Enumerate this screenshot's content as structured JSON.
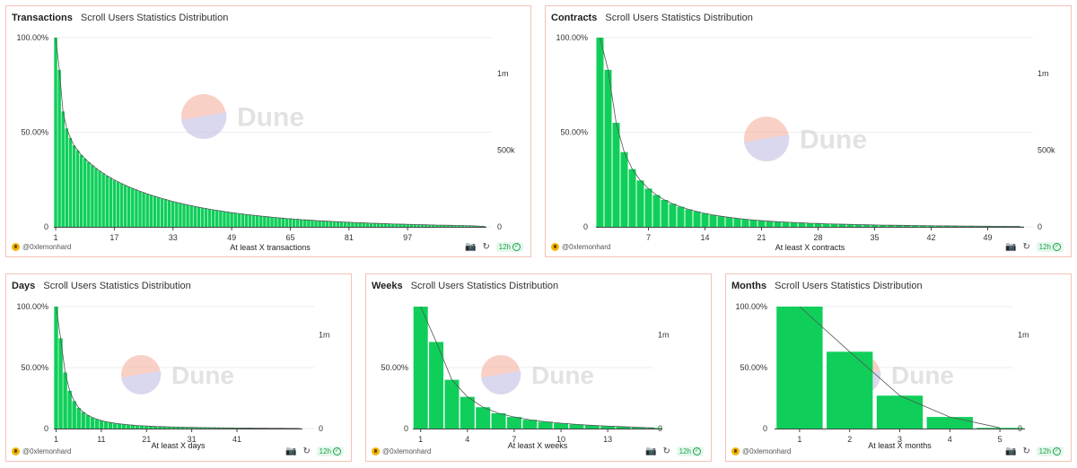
{
  "dashboard": {
    "subtitle": "Scroll Users Statistics Distribution",
    "author": "@0xlemonhard",
    "refresh_label": "12h",
    "watermark": "Dune"
  },
  "colors": {
    "bar": "#0fcf5a",
    "bar_stroke": "#ffffff",
    "line": "#555555",
    "grid": "#eeeeee",
    "panel_border": "#f3c2b6",
    "wm_top": "#f6b7a8",
    "wm_bottom": "#c7c4e8",
    "wm_text": "#d4d4d4"
  },
  "chart_data": [
    {
      "id": "transactions",
      "type": "bar",
      "title": "Transactions",
      "xlabel": "At least X transactions",
      "x_tick_labels": [
        "1",
        "17",
        "33",
        "49",
        "65",
        "81",
        "97"
      ],
      "y_left_ticks": [
        "0",
        "50.00%",
        "100.00%"
      ],
      "y_right_ticks": [
        "0",
        "500k",
        "1m"
      ],
      "note": "percent of users with at least X transactions, X = 1..118",
      "values": [
        100,
        83,
        61,
        52,
        47,
        43,
        40.5,
        38,
        36,
        34.2,
        32.6,
        31,
        29.6,
        28.3,
        27,
        25.9,
        24.8,
        23.8,
        22.9,
        22,
        21.1,
        20.3,
        19.6,
        18.8,
        18.1,
        17.4,
        16.8,
        16.2,
        15.6,
        15,
        14.5,
        13.9,
        13.4,
        12.9,
        12.5,
        12,
        11.6,
        11.2,
        10.8,
        10.4,
        10,
        9.7,
        9.3,
        9,
        8.7,
        8.4,
        8.1,
        7.8,
        7.5,
        7.3,
        7,
        6.8,
        6.5,
        6.3,
        6.1,
        5.9,
        5.7,
        5.5,
        5.3,
        5.1,
        4.9,
        4.7,
        4.6,
        4.4,
        4.3,
        4.1,
        4,
        3.8,
        3.7,
        3.6,
        3.5,
        3.3,
        3.2,
        3.1,
        3,
        2.9,
        2.8,
        2.7,
        2.6,
        2.5,
        2.4,
        2.3,
        2.2,
        2.2,
        2.1,
        2,
        1.9,
        1.9,
        1.8,
        1.7,
        1.7,
        1.6,
        1.5,
        1.5,
        1.4,
        1.4,
        1.3,
        1.3,
        1.2,
        1.2,
        1.1,
        1.1,
        1,
        1,
        0.9,
        0.9,
        0.9,
        0.8,
        0.8,
        0.7,
        0.7,
        0.7,
        0.6,
        0.6,
        0.5,
        0.4,
        0.3,
        0.2
      ],
      "ylim": [
        0,
        100
      ]
    },
    {
      "id": "contracts",
      "type": "bar",
      "title": "Contracts",
      "xlabel": "At least X contracts",
      "x_tick_labels": [
        "7",
        "14",
        "21",
        "28",
        "35",
        "42",
        "49"
      ],
      "y_left_ticks": [
        "0",
        "50.00%",
        "100.00%"
      ],
      "y_right_ticks": [
        "0",
        "500k",
        "1m"
      ],
      "note": "percent of users interacting with at least X contracts, X = 1..53",
      "values": [
        100,
        83,
        55,
        39.5,
        30.5,
        24.5,
        20.2,
        16.8,
        14.2,
        12.2,
        10.6,
        9.2,
        8.1,
        7.1,
        6.3,
        5.6,
        5,
        4.5,
        4,
        3.6,
        3.3,
        3,
        2.7,
        2.5,
        2.3,
        2.1,
        1.9,
        1.8,
        1.6,
        1.5,
        1.4,
        1.3,
        1.2,
        1.1,
        1,
        0.9,
        0.85,
        0.8,
        0.75,
        0.7,
        0.65,
        0.6,
        0.55,
        0.5,
        0.45,
        0.4,
        0.38,
        0.35,
        0.32,
        0.3,
        0.28,
        0.25,
        0.2
      ],
      "ylim": [
        0,
        100
      ]
    },
    {
      "id": "days",
      "type": "bar",
      "title": "Days",
      "xlabel": "At least X days",
      "x_tick_labels": [
        "1",
        "11",
        "21",
        "31",
        "41"
      ],
      "y_left_ticks": [
        "0",
        "50.00%",
        "100.00%"
      ],
      "y_right_ticks": [
        "0",
        "1m"
      ],
      "note": "percent of users active on at least X days, X = 1..55",
      "values": [
        100,
        74,
        46,
        31,
        22.5,
        17,
        13.5,
        11,
        9.1,
        7.7,
        6.6,
        5.7,
        5,
        4.4,
        3.9,
        3.5,
        3.1,
        2.8,
        2.5,
        2.3,
        2.1,
        1.9,
        1.7,
        1.6,
        1.5,
        1.4,
        1.3,
        1.2,
        1.1,
        1,
        0.95,
        0.9,
        0.85,
        0.8,
        0.75,
        0.7,
        0.65,
        0.6,
        0.55,
        0.5,
        0.48,
        0.45,
        0.42,
        0.4,
        0.38,
        0.35,
        0.32,
        0.3,
        0.28,
        0.25,
        0.22,
        0.2,
        0.18,
        0.15,
        0.12
      ],
      "ylim": [
        0,
        100
      ]
    },
    {
      "id": "weeks",
      "type": "bar",
      "title": "Weeks",
      "xlabel": "At least X weeks",
      "x_tick_labels": [
        "1",
        "4",
        "7",
        "10",
        "13"
      ],
      "y_left_ticks": [
        "0",
        "50.00%"
      ],
      "y_right_ticks": [
        "0",
        "1m"
      ],
      "note": "percent of users active in at least X weeks, X = 1..16",
      "values": [
        100,
        71,
        40,
        26,
        17.5,
        12.5,
        9.5,
        7.2,
        5.6,
        4.4,
        3.4,
        2.6,
        2,
        1.5,
        1,
        0.5
      ],
      "ylim": [
        0,
        100
      ]
    },
    {
      "id": "months",
      "type": "bar",
      "title": "Months",
      "xlabel": "At least X months",
      "x_tick_labels": [
        "1",
        "2",
        "3",
        "4",
        "5"
      ],
      "y_left_ticks": [
        "0",
        "50.00%",
        "100.00%"
      ],
      "y_right_ticks": [
        "0",
        "1m"
      ],
      "note": "percent of users active in at least X months, X = 1..5",
      "values": [
        100,
        63,
        27,
        9.5,
        0.6
      ],
      "ylim": [
        0,
        100
      ]
    }
  ]
}
